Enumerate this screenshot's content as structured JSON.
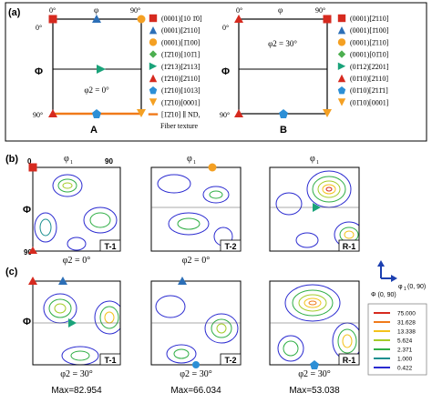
{
  "panels": {
    "a_label": "(a)",
    "b_label": "(b)",
    "c_label": "(c)"
  },
  "schematic": {
    "phi1_axis": "φ",
    "phi1_start": "0°",
    "phi1_end": "90°",
    "phi_axis": "Φ",
    "phi_start": "0°",
    "phi_end": "90°",
    "A": {
      "title": "A",
      "phi2": "φ2 = 0°",
      "legend": [
        {
          "text": "(0001)[10 1̄0]",
          "marker": "square",
          "color": "#d62a1f"
        },
        {
          "text": "(0001)[2̄110]",
          "marker": "triangle-up",
          "color": "#2c6fb7"
        },
        {
          "text": "(0001)[1̄100]",
          "marker": "circle",
          "color": "#f4a023"
        },
        {
          "text": "(1̄2̄10)[101̄1]",
          "marker": "diamond",
          "color": "#4caf50"
        },
        {
          "text": "(1̄2̄13)[2̄113]",
          "marker": "triangle-right",
          "color": "#1aa37a"
        },
        {
          "text": "(1̄2̄10)[2̄110]",
          "marker": "triangle-up",
          "color": "#d62a1f"
        },
        {
          "text": "(1̄2̄10)[1013]",
          "marker": "pentagon",
          "color": "#2c8fd6"
        },
        {
          "text": "(1̄2̄10)[0001]",
          "marker": "triangle-down",
          "color": "#f4a023"
        },
        {
          "text": "[1̄2̄10] ∥ ND,",
          "marker": "line",
          "color": "#f07a1a"
        }
      ],
      "fiber_note": "Fiber texture"
    },
    "B": {
      "title": "B",
      "phi2": "φ2 = 30°",
      "legend": [
        {
          "text": "(0001)[2̄110]",
          "marker": "square",
          "color": "#d62a1f"
        },
        {
          "text": "(0001)[1̄100]",
          "marker": "triangle-up",
          "color": "#2c6fb7"
        },
        {
          "text": "(0001)[2̄110]",
          "marker": "circle",
          "color": "#f4a023"
        },
        {
          "text": "(0001)[01̄10]",
          "marker": "diamond",
          "color": "#4caf50"
        },
        {
          "text": "(01̄12)[2̄201]",
          "marker": "triangle-right",
          "color": "#1aa37a"
        },
        {
          "text": "(01̄10)[2̄110]",
          "marker": "triangle-up",
          "color": "#d62a1f"
        },
        {
          "text": "(01̄10)[2̄11̄1]",
          "marker": "pentagon",
          "color": "#2c8fd6"
        },
        {
          "text": "(01̄10)[0001]",
          "marker": "triangle-down",
          "color": "#f4a023"
        }
      ]
    }
  },
  "odf": {
    "phi1_label": "φ",
    "phi1_sub": "1",
    "tick0": "0",
    "tick90": "90",
    "phi_label": "Φ",
    "row1_phi2": "φ2 = 0°",
    "row2_phi2": "φ2 = 30°",
    "samples": [
      "T-1",
      "T-2",
      "R-1"
    ],
    "max_values": [
      "Max=82.954",
      "Max=66.034",
      "Max=53.038"
    ]
  },
  "axes_key": {
    "x_label": "φ",
    "x_sub": "1",
    "x_range": "(0, 90)",
    "y_label": "Φ (0, 90)"
  },
  "contour_legend": {
    "levels": [
      {
        "value": "75.000",
        "color": "#d62a1f"
      },
      {
        "value": "31.628",
        "color": "#f07a1a"
      },
      {
        "value": "13.338",
        "color": "#f4c21a"
      },
      {
        "value": "5.624",
        "color": "#a5cc2a"
      },
      {
        "value": "2.371",
        "color": "#2fae45"
      },
      {
        "value": "1.000",
        "color": "#1a8f8f"
      },
      {
        "value": "0.422",
        "color": "#2a2ad0"
      }
    ]
  }
}
